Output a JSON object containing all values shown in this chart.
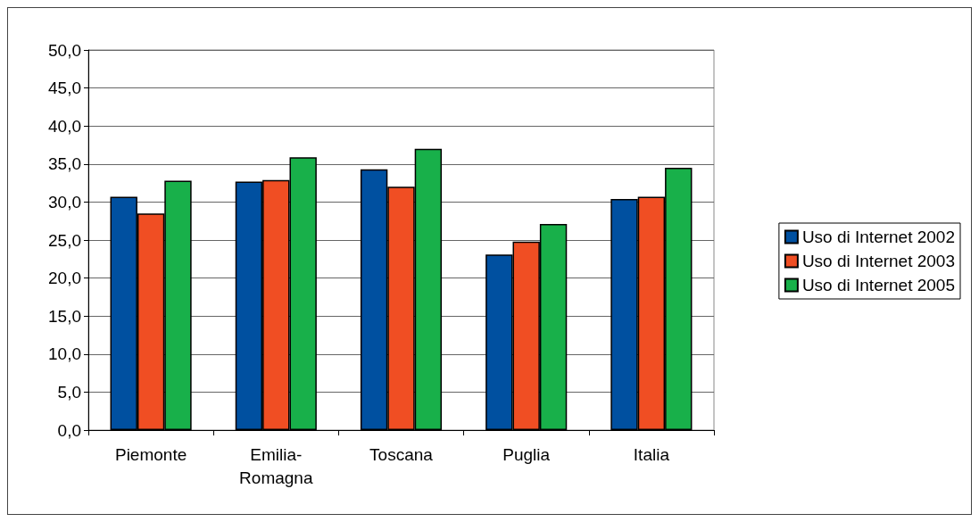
{
  "chart_data": {
    "type": "bar",
    "categories": [
      "Piemonte",
      "Emilia-\nRomagna",
      "Toscana",
      "Puglia",
      "Italia"
    ],
    "series": [
      {
        "name": "Uso di Internet 2002",
        "color": "#0050a0",
        "values": [
          30.7,
          32.7,
          34.3,
          23.1,
          30.4
        ]
      },
      {
        "name": "Uso di Internet 2003",
        "color": "#f04e23",
        "values": [
          28.5,
          32.9,
          32.0,
          24.8,
          30.7
        ]
      },
      {
        "name": "Uso di Internet 2005",
        "color": "#18b04a",
        "values": [
          32.8,
          35.9,
          37.0,
          27.1,
          34.5
        ]
      }
    ],
    "ylim": [
      0,
      50
    ],
    "yticks": [
      {
        "value": 0,
        "label": "0,0"
      },
      {
        "value": 5,
        "label": "5,0"
      },
      {
        "value": 10,
        "label": "10,0"
      },
      {
        "value": 15,
        "label": "15,0"
      },
      {
        "value": 20,
        "label": "20,0"
      },
      {
        "value": 25,
        "label": "25,0"
      },
      {
        "value": 30,
        "label": "30,0"
      },
      {
        "value": 35,
        "label": "35,0"
      },
      {
        "value": 40,
        "label": "40,0"
      },
      {
        "value": 45,
        "label": "45,0"
      },
      {
        "value": 50,
        "label": "50,0"
      }
    ],
    "grid": "y",
    "legend": "right"
  }
}
